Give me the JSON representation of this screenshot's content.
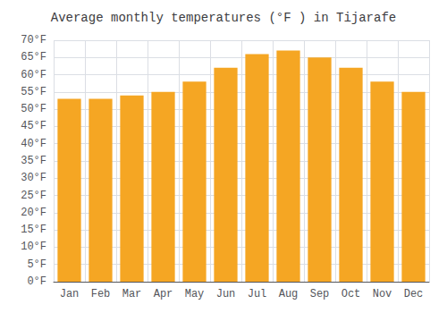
{
  "chart_data": {
    "type": "bar",
    "title": "Average monthly temperatures (°F ) in Tijarafe",
    "categories": [
      "Jan",
      "Feb",
      "Mar",
      "Apr",
      "May",
      "Jun",
      "Jul",
      "Aug",
      "Sep",
      "Oct",
      "Nov",
      "Dec"
    ],
    "values": [
      53,
      53,
      54,
      55,
      58,
      62,
      66,
      67,
      65,
      62,
      58,
      55
    ],
    "color": "#F5A623",
    "ylim": [
      0,
      70
    ],
    "yticks": [
      {
        "value": 0,
        "label": "0°F"
      },
      {
        "value": 5,
        "label": "5°F"
      },
      {
        "value": 10,
        "label": "10°F"
      },
      {
        "value": 15,
        "label": "15°F"
      },
      {
        "value": 20,
        "label": "20°F"
      },
      {
        "value": 25,
        "label": "25°F"
      },
      {
        "value": 30,
        "label": "30°F"
      },
      {
        "value": 35,
        "label": "35°F"
      },
      {
        "value": 40,
        "label": "40°F"
      },
      {
        "value": 45,
        "label": "45°F"
      },
      {
        "value": 50,
        "label": "50°F"
      },
      {
        "value": 55,
        "label": "55°F"
      },
      {
        "value": 60,
        "label": "60°F"
      },
      {
        "value": 65,
        "label": "65°F"
      },
      {
        "value": 70,
        "label": "70°F"
      }
    ],
    "grid": true
  }
}
